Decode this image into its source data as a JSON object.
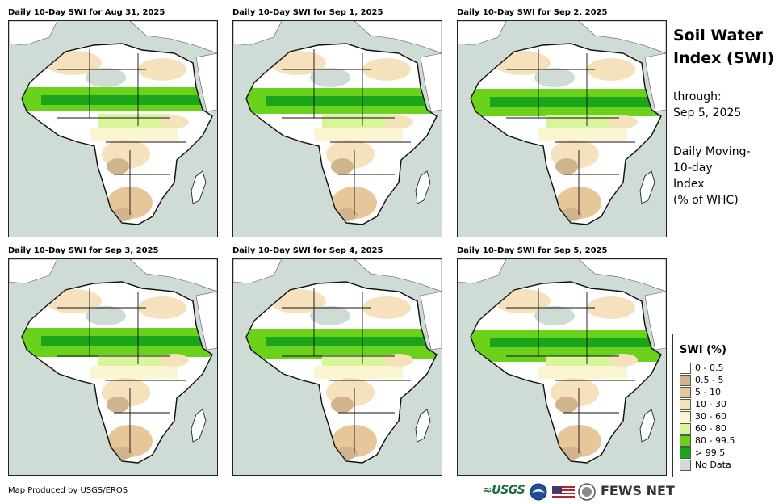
{
  "panels": [
    {
      "title": "Daily 10-Day SWI for Aug 31, 2025"
    },
    {
      "title": "Daily 10-Day SWI for Sep 1, 2025"
    },
    {
      "title": "Daily 10-Day SWI for Sep 2, 2025"
    },
    {
      "title": "Daily 10-Day SWI for Sep 3, 2025"
    },
    {
      "title": "Daily 10-Day SWI for Sep 4, 2025"
    },
    {
      "title": "Daily 10-Day SWI for Sep 5, 2025"
    }
  ],
  "sidebar": {
    "title_line1": "Soil Water",
    "title_line2": "Index (SWI)",
    "through_label": "through:",
    "through_date": "Sep 5, 2025",
    "desc_line1": "Daily Moving-",
    "desc_line2": "10-day",
    "desc_line3": "Index",
    "desc_line4": "(% of WHC)"
  },
  "legend": {
    "title": "SWI (%)",
    "items": [
      {
        "label": "0 - 0.5",
        "color": "#ffffff"
      },
      {
        "label": "0.5 - 5",
        "color": "#d2b48c"
      },
      {
        "label": "5 - 10",
        "color": "#e6c79a"
      },
      {
        "label": "10 - 30",
        "color": "#f5e1bc"
      },
      {
        "label": "30 - 60",
        "color": "#fbf6d2"
      },
      {
        "label": "60 - 80",
        "color": "#d8f59c"
      },
      {
        "label": "80 - 99.5",
        "color": "#6ad21a"
      },
      {
        "label": "> 99.5",
        "color": "#1aa51a"
      },
      {
        "label": "No Data",
        "color": "#cfdcd6"
      }
    ]
  },
  "footer": {
    "credit": "Map Produced by USGS/EROS",
    "usgs_logo": "≈USGS",
    "fews_logo": "FEWS NET",
    "icons": [
      "usgs-logo",
      "noaa-logo",
      "us-flag-icon",
      "state-dept-seal",
      "fews-net-logo"
    ]
  }
}
